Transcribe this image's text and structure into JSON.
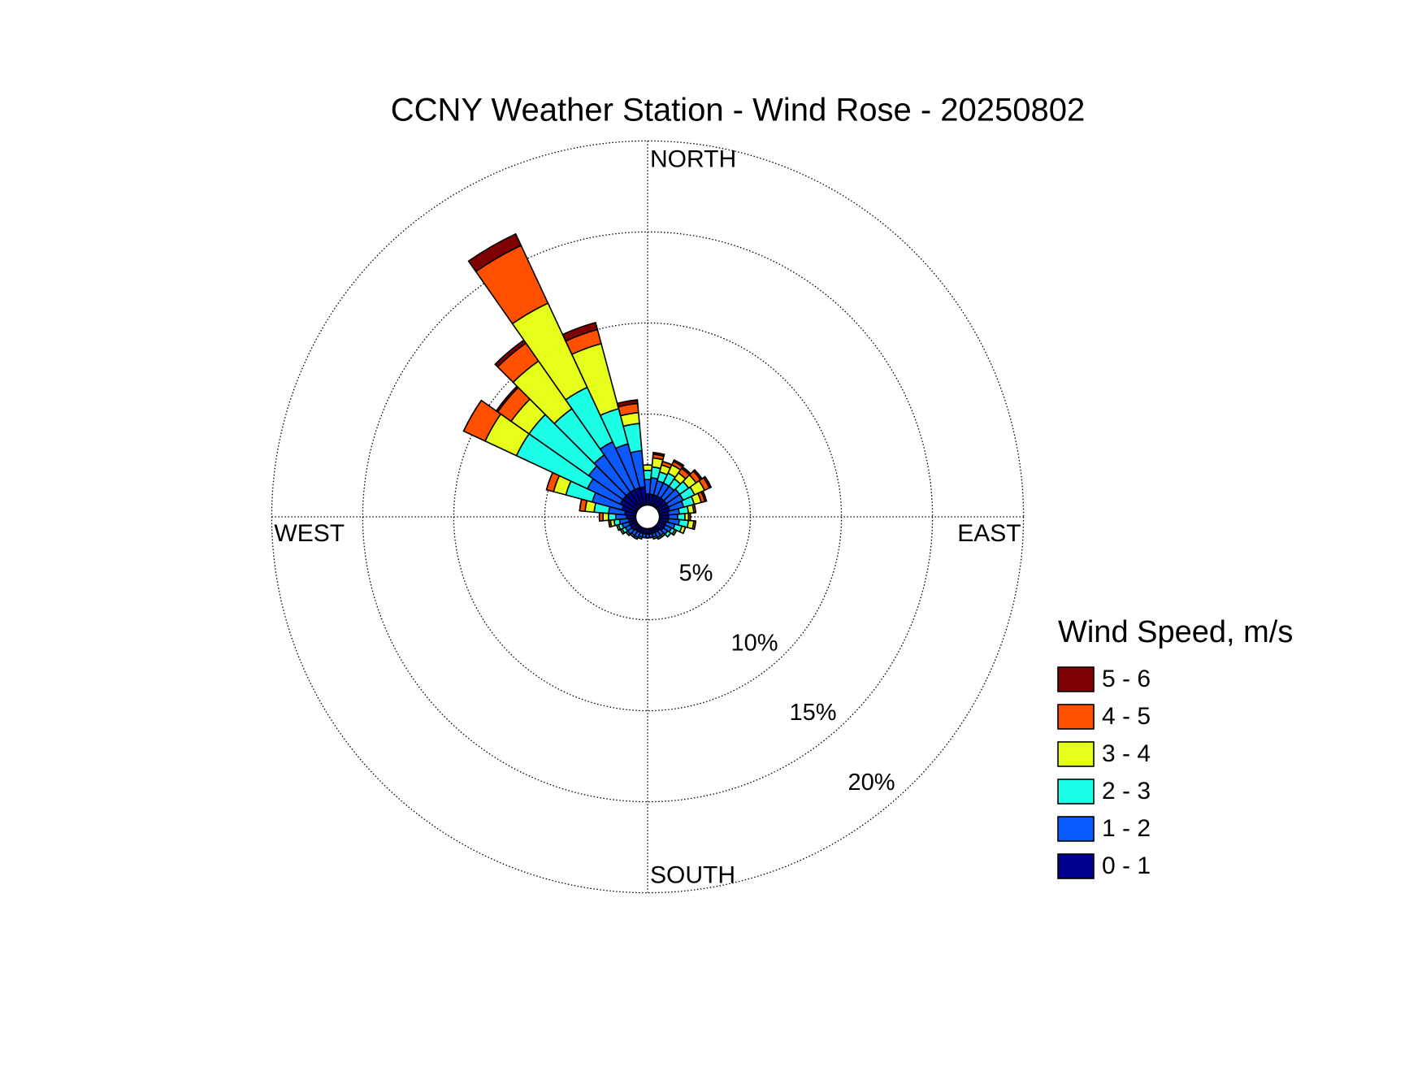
{
  "chart_data": {
    "type": "windrose",
    "title": "CCNY Weather Station - Wind Rose - 20250802",
    "compass": [
      "NORTH",
      "EAST",
      "SOUTH",
      "WEST"
    ],
    "theta": [
      0,
      10,
      20,
      30,
      40,
      50,
      60,
      70,
      80,
      90,
      100,
      110,
      120,
      130,
      140,
      150,
      160,
      170,
      180,
      190,
      200,
      210,
      220,
      230,
      240,
      250,
      260,
      270,
      280,
      290,
      300,
      310,
      320,
      330,
      340,
      350
    ],
    "rlim": [
      0,
      20
    ],
    "rticks": [
      {
        "value": 5,
        "label": "5%"
      },
      {
        "value": 10,
        "label": "10%"
      },
      {
        "value": 15,
        "label": "15%"
      },
      {
        "value": 20,
        "label": "20%"
      }
    ],
    "grid": true,
    "legend_title": "Wind Speed, m/s",
    "series": [
      {
        "name": "0 - 1",
        "color": "#00008f",
        "values": [
          0.6,
          0.6,
          0.6,
          0.6,
          0.6,
          0.6,
          0.6,
          0.6,
          0.5,
          0.5,
          0.5,
          0.4,
          0.4,
          0.4,
          0.3,
          0.3,
          0.3,
          0.3,
          0.3,
          0.3,
          0.3,
          0.3,
          0.3,
          0.4,
          0.4,
          0.4,
          0.4,
          0.5,
          0.6,
          0.8,
          1,
          1,
          1,
          1,
          1,
          1
        ]
      },
      {
        "name": "1 - 2",
        "color": "#0a5aff",
        "values": [
          0.8,
          0.9,
          0.8,
          0.8,
          0.8,
          0.9,
          0.9,
          0.8,
          0.6,
          0.5,
          0.6,
          0.5,
          0.4,
          0.3,
          0.3,
          0.3,
          0.2,
          0.2,
          0.2,
          0.2,
          0.2,
          0.3,
          0.3,
          0.3,
          0.3,
          0.4,
          0.5,
          0.6,
          0.9,
          1.7,
          2,
          2.3,
          2.5,
          2.9,
          2.5,
          2
        ]
      },
      {
        "name": "2 - 3",
        "color": "#1affe6",
        "values": [
          0.5,
          0.6,
          0.5,
          0.6,
          0.5,
          0.6,
          0.7,
          0.6,
          0.5,
          0.4,
          0.5,
          0.4,
          0.2,
          0.2,
          0.1,
          0.1,
          0.1,
          0,
          0,
          0,
          0.1,
          0.1,
          0.1,
          0.1,
          0.2,
          0.2,
          0.3,
          0.4,
          0.8,
          1.5,
          4.3,
          4.0,
          3.1,
          3.3,
          2,
          1.5
        ]
      },
      {
        "name": "3 - 4",
        "color": "#e6ff1a",
        "values": [
          0.3,
          0.5,
          0.4,
          0.5,
          0.4,
          0.5,
          0.6,
          0.4,
          0.3,
          0.2,
          0.3,
          0.2,
          0.1,
          0,
          0,
          0,
          0,
          0,
          0,
          0,
          0,
          0,
          0,
          0,
          0.1,
          0.1,
          0.2,
          0.3,
          0.5,
          0.7,
          1.9,
          1.2,
          3.2,
          5.1,
          3.7,
          0.6
        ]
      },
      {
        "name": "4 - 5",
        "color": "#ff5000",
        "values": [
          0,
          0.2,
          0.2,
          0.2,
          0.3,
          0.3,
          0.3,
          0.2,
          0.1,
          0.1,
          0.1,
          0,
          0,
          0,
          0,
          0,
          0,
          0,
          0,
          0,
          0,
          0,
          0,
          0,
          0,
          0,
          0.1,
          0.2,
          0.3,
          0.4,
          1.3,
          0.9,
          1.2,
          3.5,
          0.8,
          0.5
        ]
      },
      {
        "name": "5 - 6",
        "color": "#7f0000",
        "values": [
          0,
          0.1,
          0,
          0.1,
          0.1,
          0.1,
          0.1,
          0.1,
          0,
          0,
          0,
          0,
          0,
          0,
          0,
          0,
          0,
          0,
          0,
          0,
          0,
          0,
          0,
          0,
          0,
          0,
          0,
          0,
          0,
          0,
          0,
          0.1,
          0.2,
          0.7,
          0.4,
          0.2
        ]
      }
    ]
  }
}
